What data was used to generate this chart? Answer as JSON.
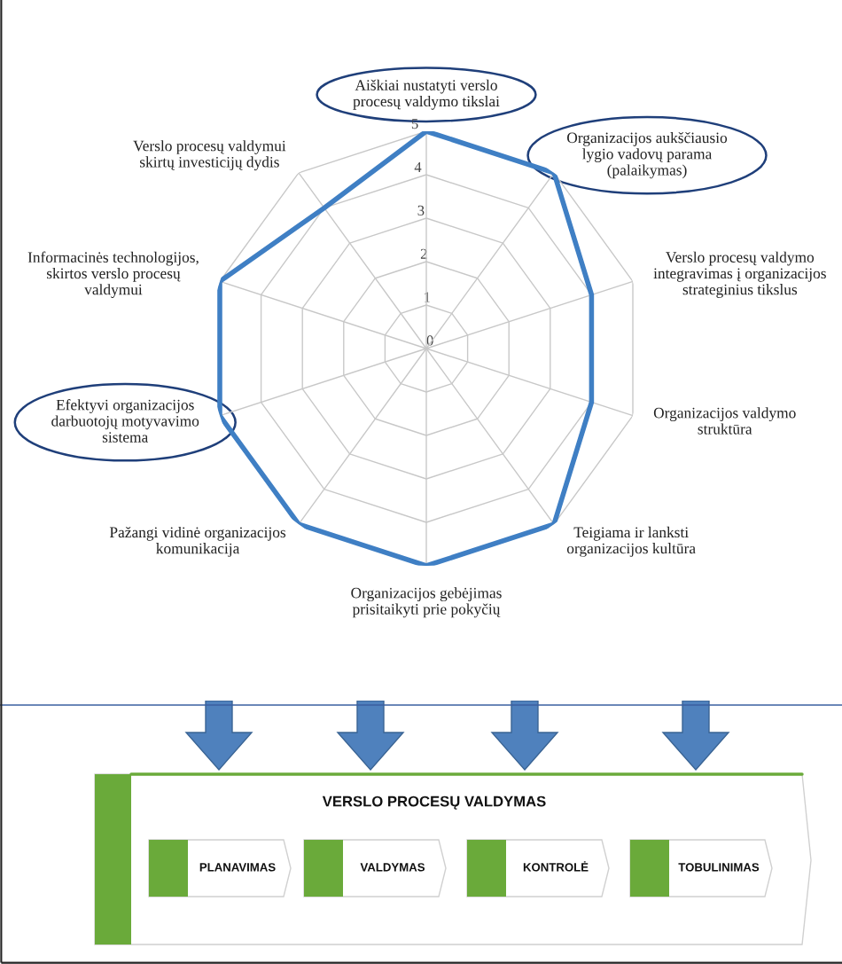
{
  "chart_data": [
    {
      "type": "radar",
      "categories": [
        "Aiškiai nustatyti verslo\nprocesų valdymo tikslai",
        "Organizacijos aukščiausio\nlygio vadovų parama\n(palaikymas)",
        "Verslo procesų valdymo\nintegravimas į organizacijos\nstrateginius tikslus",
        "Organizacijos valdymo\nstruktūra",
        "Teigiama ir lanksti\norganizacijos kultūra",
        "Organizacijos gebėjimas\nprisitaikyti prie pokyčių",
        "Pažangi vidinė organizacijos\nkomunikacija",
        "Efektyvi organizacijos\ndarbuotojų motyvavimo\nsistema",
        "Informacinės technologijos,\nskirtos verslo procesų\nvaldymui",
        "Verslo procesų valdymui\nskirtų investicijų dydis"
      ],
      "series": [
        {
          "color": "#3f7fc4",
          "values": [
            5,
            5,
            4,
            4,
            5,
            5,
            5,
            5,
            5,
            4
          ]
        }
      ],
      "ylim": [
        0,
        5
      ],
      "yticks": [
        0,
        1,
        2,
        3,
        4,
        5
      ],
      "grid": true,
      "marker": "none",
      "line_style": "solid"
    },
    {
      "type": "other",
      "title": "VERSLO PROCESŲ VALDYMAS",
      "annotations": [
        "PLANAVIMAS",
        "VALDYMAS",
        "KONTROLĖ",
        "TOBULINIMAS"
      ]
    }
  ]
}
